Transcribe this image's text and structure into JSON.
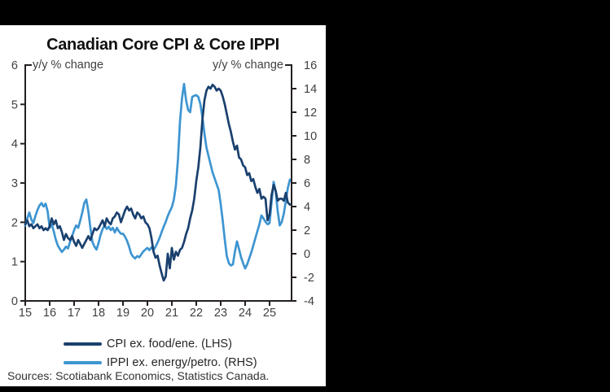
{
  "window": {
    "background": "#000000",
    "panel_background": "#ffffff"
  },
  "chart": {
    "title": "Canadian Core CPI & Core IPPI",
    "left_axis_label": "y/y % change",
    "right_axis_label": "y/y % change",
    "sources": "Sources: Scotiabank Economics, Statistics Canada.",
    "legend": [
      {
        "label": "CPI ex. food/ene. (LHS)",
        "color": "#1a406e"
      },
      {
        "label": "IPPI ex. energy/petro. (RHS)",
        "color": "#3e95d1"
      }
    ]
  },
  "chart_data": {
    "type": "line",
    "title": "Canadian Core CPI & Core IPPI",
    "x_start": "2015-01",
    "x_freq": "monthly",
    "x_tick_labels": [
      "15",
      "16",
      "17",
      "18",
      "19",
      "20",
      "21",
      "22",
      "23",
      "24",
      "25"
    ],
    "left_axis": {
      "label": "y/y % change",
      "min": 0,
      "max": 6,
      "ticks": [
        0,
        1,
        2,
        3,
        4,
        5,
        6
      ]
    },
    "right_axis": {
      "label": "y/y % change",
      "min": -4,
      "max": 16,
      "ticks": [
        -4,
        -2,
        0,
        2,
        4,
        6,
        8,
        10,
        12,
        14,
        16
      ]
    },
    "grid": false,
    "legend_position": "bottom",
    "series": [
      {
        "name": "CPI ex. food/ene. (LHS)",
        "axis": "left",
        "color": "#1a406e",
        "values": [
          1.95,
          2.05,
          1.9,
          1.95,
          1.85,
          1.9,
          1.95,
          1.85,
          1.9,
          1.8,
          1.85,
          1.8,
          1.9,
          2.1,
          1.95,
          2.05,
          1.85,
          1.9,
          1.75,
          1.55,
          1.7,
          1.6,
          1.55,
          1.65,
          1.5,
          1.4,
          1.55,
          1.45,
          1.35,
          1.45,
          1.55,
          1.65,
          1.55,
          1.7,
          1.85,
          1.8,
          1.85,
          1.95,
          2.05,
          1.9,
          2.1,
          2.0,
          1.95,
          2.1,
          2.15,
          2.25,
          2.2,
          2.0,
          2.15,
          2.3,
          2.4,
          2.3,
          2.35,
          2.2,
          2.1,
          2.25,
          2.2,
          2.1,
          2.15,
          2.0,
          1.95,
          1.85,
          1.6,
          1.25,
          1.1,
          1.15,
          0.9,
          0.7,
          0.52,
          0.62,
          1.2,
          0.83,
          1.35,
          1.05,
          1.25,
          1.15,
          1.3,
          1.35,
          1.5,
          1.7,
          1.85,
          2.1,
          2.3,
          2.6,
          3.05,
          3.4,
          3.9,
          4.6,
          5.1,
          5.35,
          5.45,
          5.4,
          5.5,
          5.45,
          5.35,
          5.4,
          5.35,
          5.2,
          5.0,
          4.75,
          4.5,
          4.3,
          4.05,
          3.85,
          3.95,
          3.65,
          3.6,
          3.45,
          3.4,
          3.2,
          3.25,
          3.05,
          3.1,
          2.9,
          2.75,
          2.85,
          2.6,
          2.65,
          2.6,
          2.05,
          2.2,
          2.7,
          2.95,
          2.8,
          2.55,
          2.6,
          2.6,
          2.55,
          2.75,
          2.5,
          2.45
        ]
      },
      {
        "name": "IPPI ex. energy/petro. (RHS)",
        "axis": "right",
        "color": "#3e95d1",
        "values": [
          2.4,
          3.0,
          3.5,
          2.9,
          2.6,
          3.2,
          3.7,
          4.1,
          4.3,
          4.0,
          4.25,
          3.6,
          2.2,
          2.5,
          1.9,
          1.2,
          0.7,
          0.4,
          0.15,
          0.35,
          0.6,
          0.45,
          1.0,
          1.5,
          2.0,
          2.4,
          2.2,
          2.8,
          3.5,
          4.3,
          4.6,
          3.6,
          2.2,
          1.0,
          0.6,
          0.35,
          0.9,
          1.6,
          2.1,
          2.4,
          2.1,
          2.3,
          2.0,
          2.2,
          1.8,
          2.2,
          1.9,
          1.7,
          1.7,
          1.45,
          1.1,
          0.6,
          0.0,
          -0.25,
          -0.4,
          -0.2,
          -0.3,
          -0.05,
          0.2,
          0.35,
          0.5,
          0.3,
          0.55,
          0.3,
          0.6,
          0.95,
          1.35,
          1.85,
          2.3,
          2.7,
          3.2,
          3.6,
          3.95,
          4.6,
          5.8,
          8.0,
          11.2,
          13.2,
          14.4,
          13.0,
          12.2,
          12.0,
          13.3,
          13.4,
          13.45,
          13.3,
          12.7,
          11.6,
          10.2,
          9.0,
          8.3,
          7.6,
          6.9,
          6.4,
          5.9,
          5.4,
          4.2,
          2.8,
          1.2,
          -0.2,
          -0.8,
          -1.0,
          -0.9,
          0.2,
          1.05,
          0.4,
          -0.3,
          -0.8,
          -1.25,
          -0.9,
          -0.4,
          0.1,
          0.7,
          1.3,
          1.9,
          2.5,
          3.25,
          3.0,
          2.7,
          2.5,
          2.6,
          4.4,
          6.1,
          5.3,
          3.6,
          2.4,
          2.7,
          3.4,
          4.5,
          5.6,
          6.3
        ]
      }
    ]
  }
}
